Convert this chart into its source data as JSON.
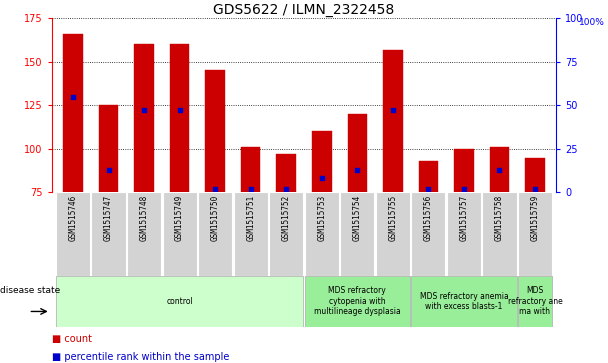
{
  "title": "GDS5622 / ILMN_2322458",
  "samples": [
    "GSM1515746",
    "GSM1515747",
    "GSM1515748",
    "GSM1515749",
    "GSM1515750",
    "GSM1515751",
    "GSM1515752",
    "GSM1515753",
    "GSM1515754",
    "GSM1515755",
    "GSM1515756",
    "GSM1515757",
    "GSM1515758",
    "GSM1515759"
  ],
  "counts": [
    166,
    125,
    160,
    160,
    145,
    101,
    97,
    110,
    120,
    157,
    93,
    100,
    101,
    95
  ],
  "percentile_ranks": [
    55,
    13,
    47,
    47,
    2,
    2,
    2,
    8,
    13,
    47,
    2,
    2,
    13,
    2
  ],
  "bar_bottom": 75,
  "ylim_left": [
    75,
    175
  ],
  "ylim_right": [
    0,
    100
  ],
  "yticks_left": [
    75,
    100,
    125,
    150,
    175
  ],
  "yticks_right": [
    0,
    25,
    50,
    75,
    100
  ],
  "bar_color": "#cc0000",
  "percentile_color": "#0000cc",
  "group_defs": [
    {
      "start": 0,
      "end": 6,
      "label": "control",
      "color": "#ccffcc"
    },
    {
      "start": 7,
      "end": 9,
      "label": "MDS refractory\ncytopenia with\nmultilineage dysplasia",
      "color": "#99ee99"
    },
    {
      "start": 10,
      "end": 12,
      "label": "MDS refractory anemia\nwith excess blasts-1",
      "color": "#99ee99"
    },
    {
      "start": 13,
      "end": 13,
      "label": "MDS\nrefractory ane\nma with",
      "color": "#99ee99"
    }
  ],
  "legend_count_color": "#cc0000",
  "legend_percentile_color": "#0000cc",
  "title_fontsize": 10,
  "label_fontsize": 5.5,
  "disease_fontsize": 5.5
}
